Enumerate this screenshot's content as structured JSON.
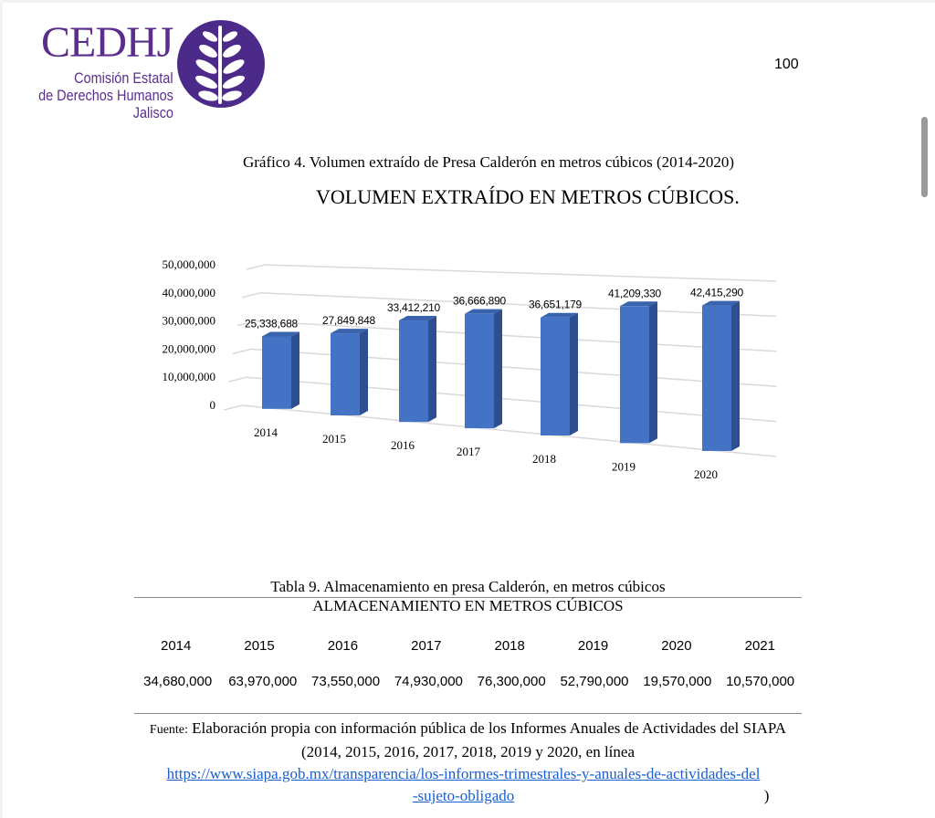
{
  "header": {
    "logo": {
      "acronym": "CEDHJ",
      "line1": "Comisión Estatal",
      "line2": "de Derechos Humanos",
      "line3": "Jalisco",
      "color": "#5b2d8e"
    },
    "page_number": "100"
  },
  "chart_caption": "Gráfico 4. Volumen extraído de Presa Calderón en metros cúbicos (2014-2020)",
  "chart_data": {
    "type": "bar",
    "title": "VOLUMEN EXTRAÍDO EN METROS CÚBICOS.",
    "categories": [
      "2014",
      "2015",
      "2016",
      "2017",
      "2018",
      "2019",
      "2020"
    ],
    "values": [
      25338688,
      27849848,
      33412210,
      36666890,
      36651179,
      41209330,
      42415290
    ],
    "data_labels": [
      "25,338,688",
      "27,849,848",
      "33,412,210",
      "36,666,890",
      "36,651,179",
      "41,209,330",
      "42,415,290"
    ],
    "y_ticks": [
      "0",
      "10,000,000",
      "20,000,000",
      "30,000,000",
      "40,000,000",
      "50,000,000"
    ],
    "ylim": [
      0,
      50000000
    ],
    "grid": true,
    "style": "3d-column",
    "bar_color": "#4472c4"
  },
  "table": {
    "caption": "Tabla 9. Almacenamiento en presa Calderón, en metros cúbicos",
    "header": "ALMACENAMIENTO EN METROS CÚBICOS",
    "years": [
      "2014",
      "2015",
      "2016",
      "2017",
      "2018",
      "2019",
      "2020",
      "2021"
    ],
    "values": [
      "34,680,000",
      "63,970,000",
      "73,550,000",
      "74,930,000",
      "76,300,000",
      "52,790,000",
      "19,570,000",
      "10,570,000"
    ]
  },
  "source": {
    "label": "Fuente:",
    "text": "Elaboración propia con información pública de los Informes Anuales de Actividades del SIAPA (2014, 2015, 2016, 2017, 2018, 2019 y 2020, en línea",
    "link": "https://www.siapa.gob.mx/transparencia/los-informes-trimestrales-y-anuales-de-actividades-del-sujeto-obligado",
    "close": ")"
  }
}
